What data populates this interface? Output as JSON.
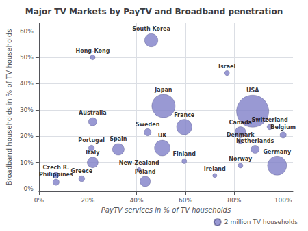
{
  "chart_data": {
    "type": "scatter",
    "title": "Major TV Markets by PayTV and Broadband penetration",
    "xlabel": "PayTV services in % of TV households",
    "ylabel": "Broadband households in % of TV households",
    "series": [
      {
        "name": "2 million TV households",
        "color": "#8080c8",
        "labels": [
          "South Korea",
          "Hong-Kong",
          "Israel",
          "Japan",
          "USA",
          "Australia",
          "France",
          "Switzerland",
          "Sweden",
          "Canada",
          "Belgium",
          "Portugal",
          "Denmark",
          "Spain",
          "UK",
          "Netherlands",
          "Italy",
          "Finland",
          "New-Zealand",
          "Norway",
          "Germany",
          "Czech R.",
          "Philippines",
          "Greece",
          "Poland",
          "Ireland"
        ],
        "x": [
          0.46,
          0.22,
          0.77,
          0.51,
          0.875,
          0.22,
          0.595,
          0.945,
          0.445,
          0.825,
          1.0,
          0.215,
          0.825,
          0.325,
          0.505,
          0.885,
          0.22,
          0.595,
          0.41,
          0.825,
          0.975,
          0.07,
          0.07,
          0.175,
          0.435,
          0.72
        ],
        "values": [
          0.565,
          0.5,
          0.44,
          0.315,
          0.295,
          0.255,
          0.235,
          0.235,
          0.215,
          0.215,
          0.205,
          0.155,
          0.18,
          0.15,
          0.155,
          0.15,
          0.1,
          0.105,
          0.072,
          0.088,
          0.088,
          0.052,
          0.025,
          0.038,
          0.028,
          0.05
        ],
        "sizes": [
          18,
          2.5,
          2.5,
          55,
          105,
          7,
          24,
          3,
          5,
          12,
          4,
          3.5,
          2.5,
          14,
          25,
          7,
          12,
          2.5,
          2,
          2.5,
          37,
          3.5,
          4,
          3.5,
          11,
          1.8
        ]
      }
    ],
    "xlim": [
      0,
      1.04
    ],
    "ylim": [
      -0.01,
      0.63
    ],
    "xticks": [
      {
        "value": 0,
        "label": "0%"
      },
      {
        "value": 0.2,
        "label": "20%"
      },
      {
        "value": 0.4,
        "label": "40%"
      },
      {
        "value": 0.6,
        "label": "60%"
      },
      {
        "value": 0.8,
        "label": "80%"
      },
      {
        "value": 1.0,
        "label": "100%"
      }
    ],
    "yticks": [
      {
        "value": 0,
        "label": "0%"
      },
      {
        "value": 0.1,
        "label": "10%"
      },
      {
        "value": 0.2,
        "label": "20%"
      },
      {
        "value": 0.3,
        "label": "30%"
      },
      {
        "value": 0.4,
        "label": "40%"
      },
      {
        "value": 0.5,
        "label": "50%"
      },
      {
        "value": 0.6,
        "label": "60%"
      }
    ],
    "grid": true,
    "legend": "lower right"
  }
}
